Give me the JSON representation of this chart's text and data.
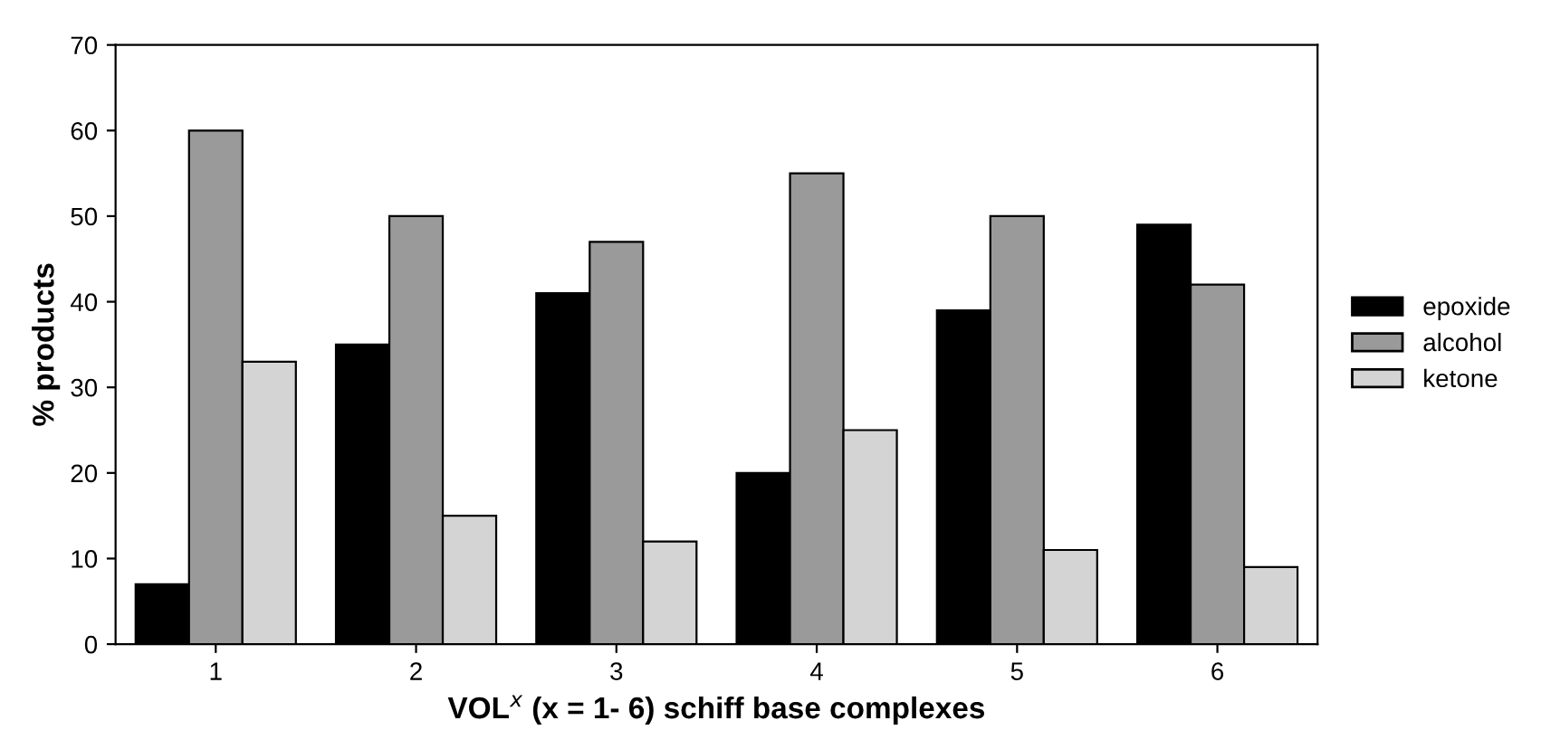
{
  "chart_data": {
    "type": "bar",
    "xlabel": "VOL$^{x}$ (x = 1- 6) schiff base complexes",
    "ylabel": "% products",
    "categories": [
      "1",
      "2",
      "3",
      "4",
      "5",
      "6"
    ],
    "series": [
      {
        "name": "epoxide",
        "color": "#000000",
        "values": [
          7,
          35,
          41,
          20,
          39,
          49
        ]
      },
      {
        "name": "alcohol",
        "color": "#9a9a9a",
        "values": [
          60,
          50,
          47,
          55,
          50,
          42
        ]
      },
      {
        "name": "ketone",
        "color": "#d4d4d4",
        "values": [
          33,
          15,
          12,
          25,
          11,
          9
        ]
      }
    ],
    "ylim": [
      0,
      70
    ],
    "yticks": [
      0,
      10,
      20,
      30,
      40,
      50,
      60,
      70
    ],
    "grid": false,
    "legend": "right"
  }
}
